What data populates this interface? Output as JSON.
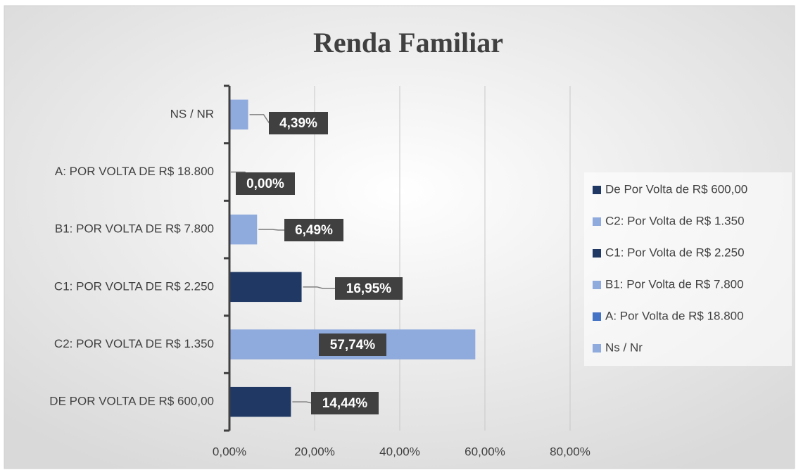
{
  "chart_data": {
    "type": "hbar",
    "title": "Renda Familiar",
    "categories": [
      "NS / NR",
      "A: POR VOLTA DE R$ 18.800",
      "B1: POR VOLTA DE R$ 7.800",
      "C1: POR VOLTA DE R$ 2.250",
      "C2: POR VOLTA DE R$ 1.350",
      "DE POR VOLTA DE R$ 600,00"
    ],
    "values": [
      4.39,
      0,
      6.49,
      16.95,
      57.74,
      14.44
    ],
    "value_labels": [
      "4,39%",
      "0,00%",
      "6,49%",
      "16,95%",
      "57,74%",
      "14,44%"
    ],
    "colors": [
      "#8faadc",
      "#4472c4",
      "#8faadc",
      "#1f3864",
      "#8faadc",
      "#1f3864"
    ],
    "legend": [
      {
        "name": "De Por Volta de R$ 600,00",
        "color": "#1f3864"
      },
      {
        "name": "C2: Por Volta de R$ 1.350",
        "color": "#8faadc"
      },
      {
        "name": "C1: Por Volta de R$ 2.250",
        "color": "#1f3864"
      },
      {
        "name": "B1: Por Volta de R$ 7.800",
        "color": "#8faadc"
      },
      {
        "name": "A: Por Volta de R$ 18.800",
        "color": "#4472c4"
      },
      {
        "name": "Ns / Nr",
        "color": "#8faadc"
      }
    ],
    "legend_position": "right",
    "xlim": [
      0,
      80
    ],
    "xticks": [
      {
        "value": 0,
        "label": "0,00%"
      },
      {
        "value": 20,
        "label": "20,00%"
      },
      {
        "value": 40,
        "label": "40,00%"
      },
      {
        "value": 60,
        "label": "60,00%"
      },
      {
        "value": 80,
        "label": "80,00%"
      }
    ],
    "grid": true
  }
}
